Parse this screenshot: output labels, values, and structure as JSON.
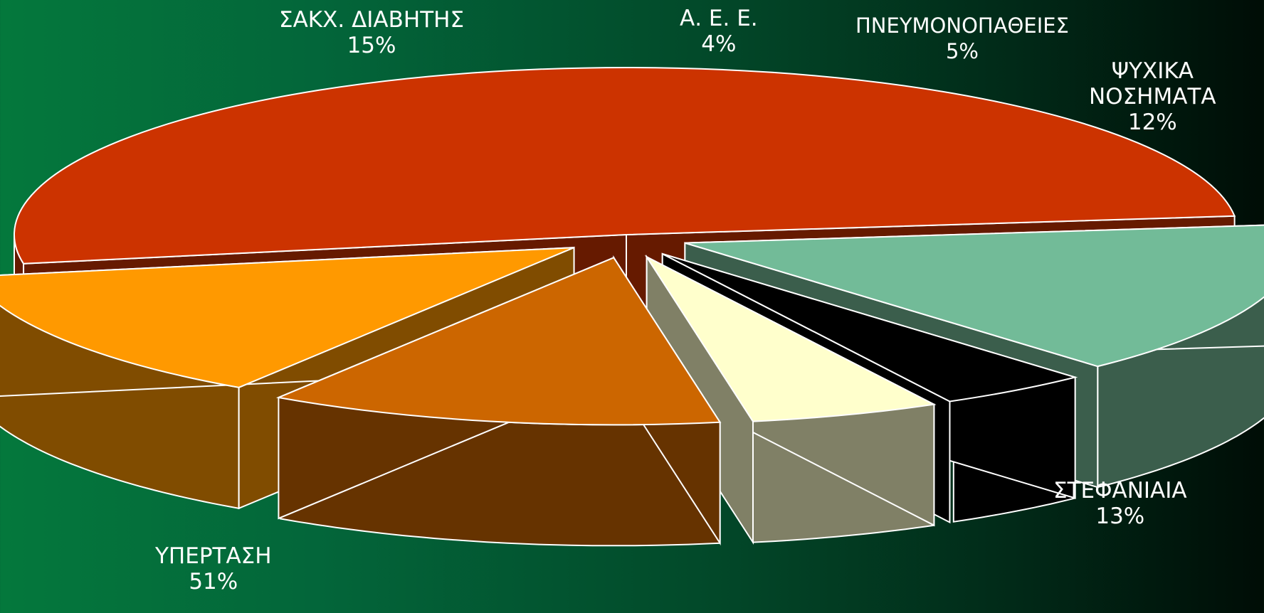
{
  "chart_data": {
    "type": "pie",
    "title": "",
    "slices": [
      {
        "label": "ΥΠΕΡΤΑΣΗ",
        "label_lines": [
          "ΥΠΕΡΤΑΣΗ"
        ],
        "value": 51,
        "value_text": "51%",
        "color": "#cc3300",
        "side_color": "#661a00"
      },
      {
        "label": "ΣΑΚΧ. ΔΙΑΒΗΤΗΣ",
        "label_lines": [
          "ΣΑΚΧ. ΔΙΑΒΗΤΗΣ"
        ],
        "value": 15,
        "value_text": "15%",
        "color": "#72bb98",
        "side_color": "#3b5e4c"
      },
      {
        "label": "Α. Ε. Ε.",
        "label_lines": [
          "Α. Ε. Ε."
        ],
        "value": 4,
        "value_text": "4%",
        "color": "#000000",
        "side_color": "#000000"
      },
      {
        "label": "ΠΝΕΥΜΟΝΟΠΑΘΕΙΕΣ",
        "label_lines": [
          "ΠΝΕΥΜΟΝΟΠΑΘΕΙΕΣ"
        ],
        "value": 5,
        "value_text": "5%",
        "color": "#ffffcc",
        "side_color": "#808066"
      },
      {
        "label": "ΨΥΧΙΚΑ ΝΟΣΗΜΑΤΑ",
        "label_lines": [
          "ΨΥΧΙΚΑ",
          "ΝΟΣΗΜΑΤΑ"
        ],
        "value": 12,
        "value_text": "12%",
        "color": "#cc6600",
        "side_color": "#663300"
      },
      {
        "label": "ΣΤΕΦΑΝΙΑΙΑ",
        "label_lines": [
          "ΣΤΕΦΑΝΙΑΙΑ"
        ],
        "value": 13,
        "value_text": "13%",
        "color": "#ff9900",
        "side_color": "#804c00"
      }
    ],
    "style": "3d-exploded-pie",
    "legend": "none"
  }
}
